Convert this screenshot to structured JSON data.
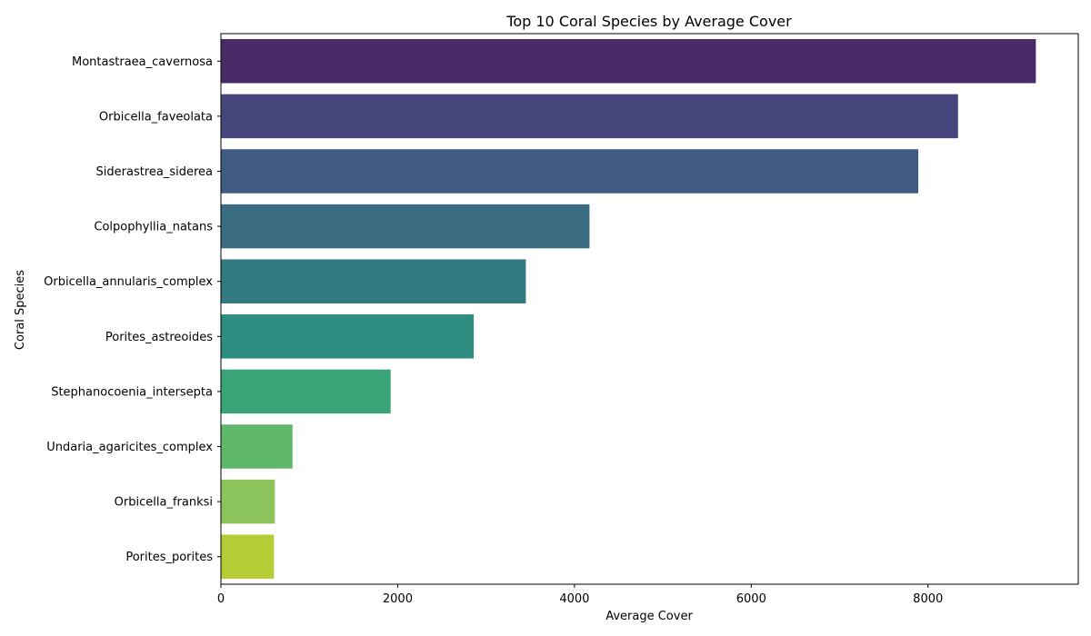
{
  "chart_data": {
    "type": "bar",
    "orientation": "horizontal",
    "title": "Top 10 Coral Species by Average Cover",
    "xlabel": "Average Cover",
    "ylabel": "Coral Species",
    "xlim": [
      0,
      9700
    ],
    "xticks": [
      0,
      2000,
      4000,
      6000,
      8000
    ],
    "xtick_labels": [
      "0",
      "2000",
      "4000",
      "6000",
      "8000"
    ],
    "grid": false,
    "categories": [
      "Montastraea_cavernosa",
      "Orbicella_faveolata",
      "Siderastrea_siderea",
      "Colpophyllia_natans",
      "Orbicella_annularis_complex",
      "Porites_astreoides",
      "Stephanocoenia_intersepta",
      "Undaria_agaricites_complex",
      "Orbicella_franksi",
      "Porites_porites"
    ],
    "values": [
      9220,
      8340,
      7890,
      4170,
      3450,
      2860,
      1920,
      810,
      610,
      600
    ],
    "colors": [
      "#482a67",
      "#46467c",
      "#415c82",
      "#3a6d82",
      "#317b80",
      "#2d8d80",
      "#3ba378",
      "#5fb86c",
      "#8bc45a",
      "#b6cc34"
    ]
  }
}
